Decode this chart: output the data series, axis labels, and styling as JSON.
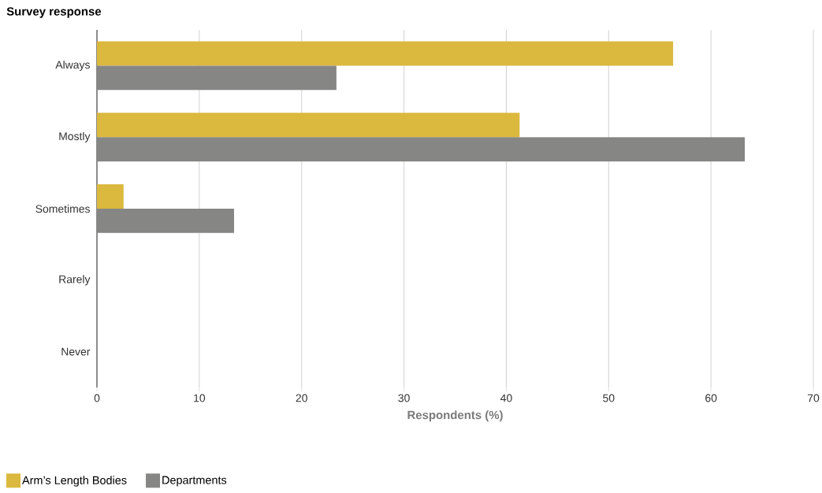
{
  "chart_data": {
    "type": "bar",
    "orientation": "horizontal",
    "title": "Survey response",
    "xlabel": "Respondents (%)",
    "categories": [
      "Always",
      "Mostly",
      "Sometimes",
      "Rarely",
      "Never"
    ],
    "series": [
      {
        "name": "Arm’s Length Bodies",
        "color": "#dbb83e",
        "values": [
          56.3,
          41.3,
          2.6,
          0,
          0
        ]
      },
      {
        "name": "Departments",
        "color": "#868684",
        "values": [
          23.4,
          63.3,
          13.4,
          0,
          0
        ]
      }
    ],
    "xlim": [
      0,
      70
    ],
    "xticks": [
      0,
      10,
      20,
      30,
      40,
      50,
      60,
      70
    ],
    "grid": "x",
    "legend": "bottom left"
  }
}
